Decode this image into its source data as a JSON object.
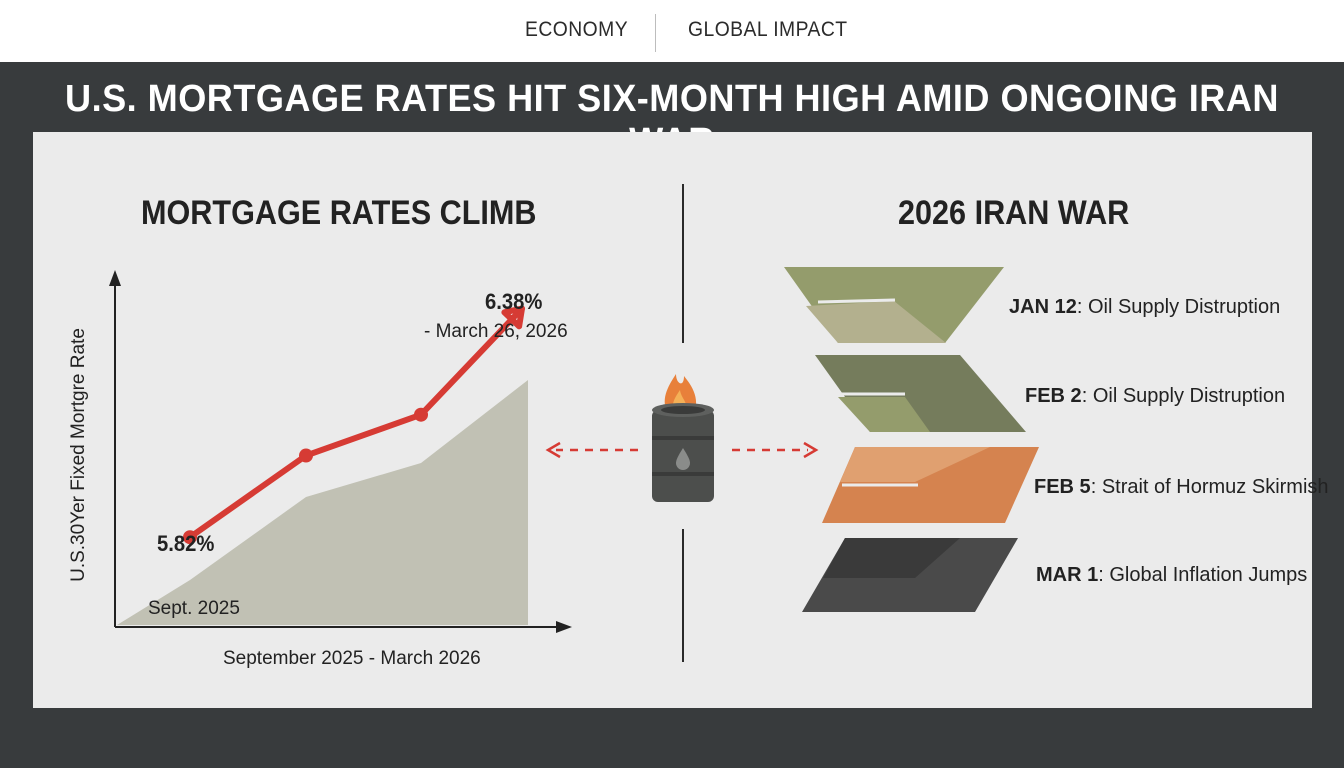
{
  "nav": {
    "items": [
      "ECONOMY",
      "GLOBAL IMPACT"
    ]
  },
  "headline": "U.S. MORTGAGE RATES HIT SIX-MONTH HIGH AMID ONGOING IRAN WAR",
  "left_section": {
    "title": "MORTGAGE RATES CLIMB"
  },
  "right_section": {
    "title": "2026 IRAN WAR"
  },
  "chart_data": {
    "type": "line",
    "title": "MORTGAGE RATES CLIMB",
    "xlabel": "September 2025 - March 2026",
    "ylabel": "U.S.30Yer Fixed Mortgre Rate",
    "x": [
      "Sept. 2025",
      "",
      "",
      "March 26, 2026"
    ],
    "series": [
      {
        "values": [
          5.82,
          6.02,
          6.12,
          6.38
        ]
      }
    ],
    "annotations": [
      {
        "value_label": "5.82%",
        "date_label": "Sept. 2025"
      },
      {
        "value_label": "6.38%",
        "date_label": "- March 26, 2026"
      }
    ],
    "ylim": [
      5.6,
      6.45
    ],
    "grid": false,
    "color": "#d63b34",
    "area_color": "#c1c1b4"
  },
  "timeline": {
    "events": [
      {
        "date": "JAN 12",
        "text": "Oil Supply Distruption",
        "color": "#949c6c"
      },
      {
        "date": "FEB 2",
        "text": "Oil Supply Distruption",
        "color": "#757c5c"
      },
      {
        "date": "FEB 5",
        "text": "Strait of Hormuz Skirmish",
        "color": "#d5834f"
      },
      {
        "date": "MAR 1",
        "text": "Global Inflation Jumps",
        "color": "#4a4a4a"
      }
    ]
  },
  "icons": [
    "burning-oil-barrel-icon",
    "dashed-arrow-left-icon",
    "dashed-arrow-right-icon"
  ]
}
